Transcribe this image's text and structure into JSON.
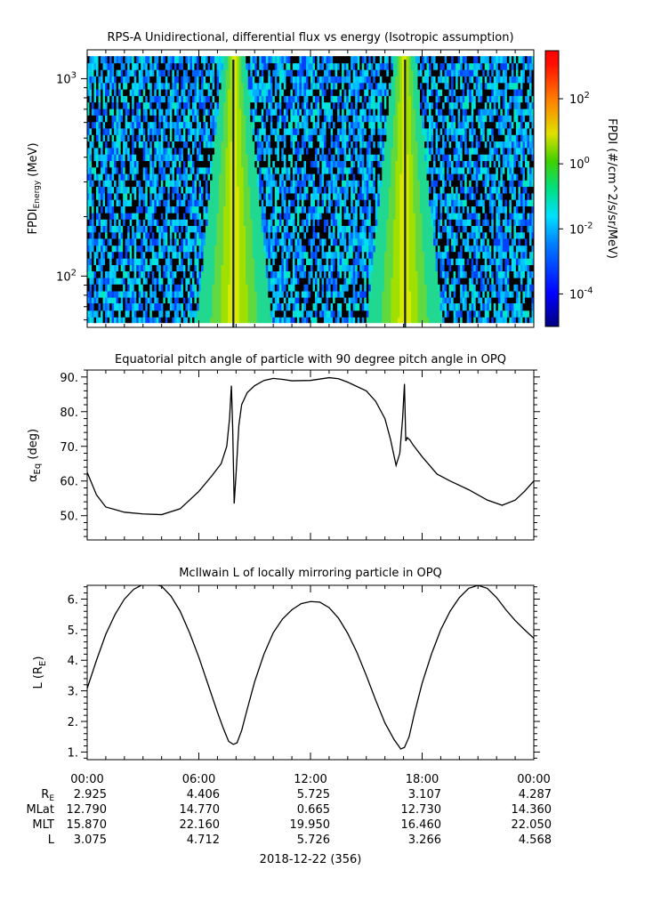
{
  "chart_data": [
    {
      "type": "heatmap",
      "title": "RPS-A Unidirectional, differential flux vs energy (Isotropic assumption)",
      "ylabel": "FPDI",
      "ylabel_sub": "Energy",
      "ylabel_unit": " (MeV)",
      "ylog": true,
      "yticks": [
        {
          "value": 100,
          "label": "10",
          "exp": "2"
        },
        {
          "value": 1000,
          "label": "10",
          "exp": "3"
        }
      ],
      "colorbar": {
        "label": "FPDI (#/cm^2/s/sr/MeV)",
        "log": true,
        "range": [
          1e-05,
          3000
        ],
        "ticks": [
          {
            "value": 100,
            "label": "10",
            "exp": "2"
          },
          {
            "value": 1,
            "label": "10",
            "exp": "0"
          },
          {
            "value": 0.01,
            "label": "10",
            "exp": "-2"
          },
          {
            "value": 0.0001,
            "label": "10",
            "exp": "-4"
          }
        ]
      },
      "energy_bins_mev": [
        58,
        62,
        67,
        73,
        78,
        84,
        91,
        98,
        106,
        114,
        123,
        133,
        143,
        155,
        167,
        180,
        194,
        209,
        226,
        244,
        263,
        284,
        306,
        330,
        356,
        384,
        414,
        447,
        482,
        520,
        561,
        605,
        653,
        704,
        760,
        820,
        884,
        954,
        1030,
        1110,
        1200,
        1300
      ],
      "bright_bands": [
        {
          "center_hour": 7.85,
          "note": "high flux (green-yellow) band"
        },
        {
          "center_hour": 17.05,
          "note": "high flux (green-yellow) band"
        }
      ]
    },
    {
      "type": "line",
      "title": "Equatorial pitch angle of particle with 90 degree pitch angle in OPQ",
      "ylabel": "α",
      "ylabel_sub": "Eq",
      "ylabel_unit": " (deg)",
      "ylim": [
        43,
        92
      ],
      "yticks": [
        50,
        60,
        70,
        80,
        90
      ],
      "yticklabels": [
        "50.",
        "60.",
        "70.",
        "80.",
        "90."
      ],
      "x_hours": [
        0,
        0.5,
        1,
        2,
        3,
        4,
        5,
        6,
        6.7,
        7.2,
        7.5,
        7.65,
        7.75,
        7.82,
        7.9,
        8.0,
        8.15,
        8.3,
        8.6,
        9,
        9.5,
        10,
        10.5,
        11,
        12,
        13,
        13.5,
        14,
        15,
        15.5,
        16,
        16.3,
        16.6,
        16.8,
        16.95,
        17.05,
        17.12,
        17.2,
        17.35,
        17.5,
        18,
        18.8,
        19.5,
        20.5,
        21.5,
        22.3,
        23,
        23.5,
        24
      ],
      "values": [
        62.5,
        56,
        52.5,
        51,
        50.5,
        50.3,
        52,
        57,
        61.5,
        65,
        70,
        78,
        87.5,
        75,
        53.5,
        62,
        76,
        82,
        85.5,
        87.5,
        89,
        89.6,
        89.3,
        88.9,
        89,
        89.8,
        89.5,
        88.5,
        86,
        83,
        78,
        72,
        64.5,
        68,
        78,
        88,
        71.5,
        72.5,
        71.8,
        70.5,
        67,
        62,
        60,
        57.5,
        54.5,
        53,
        54.5,
        57,
        60
      ]
    },
    {
      "type": "line",
      "title": "McIlwain L of locally mirroring particle in OPQ",
      "ylabel": "L (R",
      "ylabel_sub": "E",
      "ylabel_unit": ")",
      "ylim": [
        0.75,
        6.45
      ],
      "yticks": [
        1,
        2,
        3,
        4,
        5,
        6
      ],
      "yticklabels": [
        "1.",
        "2.",
        "3.",
        "4.",
        "5.",
        "6."
      ],
      "x_hours": [
        0,
        0.5,
        1,
        1.5,
        2,
        2.5,
        3,
        3.5,
        4,
        4.5,
        5,
        5.5,
        6,
        6.5,
        7,
        7.3,
        7.6,
        7.85,
        8.05,
        8.3,
        8.6,
        9,
        9.5,
        10,
        10.5,
        11,
        11.5,
        12,
        12.5,
        13,
        13.5,
        14,
        14.5,
        15,
        15.5,
        16,
        16.5,
        16.85,
        17.05,
        17.3,
        17.6,
        18,
        18.5,
        19,
        19.5,
        20,
        20.5,
        21,
        21.5,
        22,
        22.5,
        23,
        23.5,
        24
      ],
      "values": [
        3.08,
        4.0,
        4.85,
        5.5,
        6.0,
        6.32,
        6.48,
        6.5,
        6.42,
        6.1,
        5.6,
        4.9,
        4.1,
        3.2,
        2.3,
        1.8,
        1.35,
        1.25,
        1.3,
        1.7,
        2.4,
        3.3,
        4.2,
        4.9,
        5.35,
        5.65,
        5.85,
        5.92,
        5.9,
        5.72,
        5.38,
        4.88,
        4.25,
        3.5,
        2.7,
        1.95,
        1.4,
        1.1,
        1.15,
        1.5,
        2.3,
        3.25,
        4.2,
        5.0,
        5.6,
        6.05,
        6.35,
        6.45,
        6.35,
        6.05,
        5.65,
        5.3,
        5.0,
        4.72
      ]
    }
  ],
  "time_axis": {
    "ticks": [
      "00:00",
      "06:00",
      "12:00",
      "18:00",
      "00:00"
    ],
    "date_label": "2018-12-22 (356)"
  },
  "ephemeris": {
    "rows": [
      {
        "name": "R",
        "sub": "E",
        "values": [
          "2.925",
          "4.406",
          "5.725",
          "3.107",
          "4.287"
        ]
      },
      {
        "name": "MLat",
        "sub": "",
        "values": [
          "12.790",
          "14.770",
          "0.665",
          "12.730",
          "14.360"
        ]
      },
      {
        "name": "MLT",
        "sub": "",
        "values": [
          "15.870",
          "22.160",
          "19.950",
          "16.460",
          "22.050"
        ]
      },
      {
        "name": "L",
        "sub": "",
        "values": [
          "3.075",
          "4.712",
          "5.726",
          "3.266",
          "4.568"
        ]
      }
    ]
  }
}
